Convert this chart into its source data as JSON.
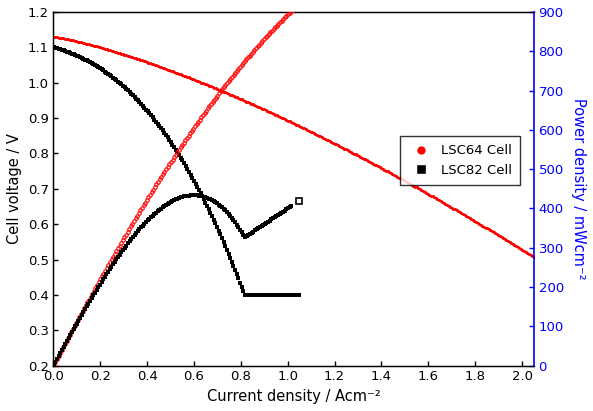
{
  "xlabel": "Current density / Acm⁻²",
  "ylabel_left": "Cell voltage / V",
  "ylabel_right": "Power density / mWcm⁻²",
  "xlim": [
    0,
    2.05
  ],
  "ylim_left": [
    0.2,
    1.2
  ],
  "ylim_right": [
    0,
    900
  ],
  "lsc64_color": "#FF0000",
  "lsc82_color": "#000000",
  "lsc64_label": "LSC64 Cell",
  "lsc82_label": "LSC82 Cell",
  "xticks": [
    0.0,
    0.2,
    0.4,
    0.6,
    0.8,
    1.0,
    1.2,
    1.4,
    1.6,
    1.8,
    2.0
  ],
  "yticks_left": [
    0.2,
    0.3,
    0.4,
    0.5,
    0.6,
    0.7,
    0.8,
    0.9,
    1.0,
    1.1,
    1.2
  ],
  "yticks_right": [
    0,
    100,
    200,
    300,
    400,
    500,
    600,
    700,
    800,
    900
  ],
  "lsc64_V0": 1.13,
  "lsc64_Vend": 0.44,
  "lsc64_xmax": 2.05,
  "lsc82_V0": 1.1,
  "lsc82_xmax": 1.05,
  "lsc82_Vend": 0.4
}
